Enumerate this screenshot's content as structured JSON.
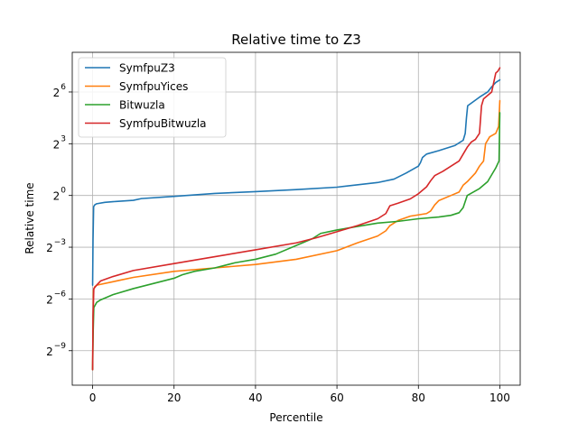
{
  "chart_data": {
    "type": "line",
    "title": "Relative time to Z3",
    "xlabel": "Percentile",
    "ylabel": "Relative time",
    "xlim": [
      -5,
      105
    ],
    "ylim_log2": [
      -11,
      8.3
    ],
    "y_scale": "log2",
    "grid": true,
    "legend_position": "upper-left",
    "x_ticks": [
      {
        "value": 0,
        "label": "0"
      },
      {
        "value": 20,
        "label": "20"
      },
      {
        "value": 40,
        "label": "40"
      },
      {
        "value": 60,
        "label": "60"
      },
      {
        "value": 80,
        "label": "80"
      },
      {
        "value": 100,
        "label": "100"
      }
    ],
    "y_ticks": [
      {
        "value": -9,
        "base": "2",
        "exp": "−9"
      },
      {
        "value": -6,
        "base": "2",
        "exp": "−6"
      },
      {
        "value": -3,
        "base": "2",
        "exp": "−3"
      },
      {
        "value": 0,
        "base": "2",
        "exp": "0"
      },
      {
        "value": 3,
        "base": "2",
        "exp": "3"
      },
      {
        "value": 6,
        "base": "2",
        "exp": "6"
      }
    ],
    "series": [
      {
        "name": "SymfpuZ3",
        "color": "#1f77b4",
        "points": [
          [
            0,
            -5.2
          ],
          [
            0.1,
            -2.6
          ],
          [
            0.25,
            -0.65
          ],
          [
            0.5,
            -0.55
          ],
          [
            1,
            -0.48
          ],
          [
            3,
            -0.4
          ],
          [
            5,
            -0.36
          ],
          [
            10,
            -0.28
          ],
          [
            12,
            -0.18
          ],
          [
            20,
            -0.05
          ],
          [
            30,
            0.12
          ],
          [
            40,
            0.22
          ],
          [
            50,
            0.34
          ],
          [
            60,
            0.48
          ],
          [
            70,
            0.75
          ],
          [
            74,
            0.95
          ],
          [
            77,
            1.3
          ],
          [
            80,
            1.7
          ],
          [
            80.5,
            1.9
          ],
          [
            81,
            2.2
          ],
          [
            82,
            2.4
          ],
          [
            85,
            2.6
          ],
          [
            89,
            2.9
          ],
          [
            91,
            3.2
          ],
          [
            91.5,
            3.6
          ],
          [
            91.8,
            4.5
          ],
          [
            92.1,
            5.2
          ],
          [
            95,
            5.7
          ],
          [
            97,
            6.0
          ],
          [
            98,
            6.3
          ],
          [
            99,
            6.55
          ],
          [
            100,
            6.7
          ]
        ]
      },
      {
        "name": "SymfpuYices",
        "color": "#ff7f0e",
        "points": [
          [
            0,
            -10.1
          ],
          [
            0.1,
            -7.5
          ],
          [
            0.2,
            -5.5
          ],
          [
            0.5,
            -5.3
          ],
          [
            1,
            -5.2
          ],
          [
            5,
            -5.0
          ],
          [
            10,
            -4.75
          ],
          [
            20,
            -4.4
          ],
          [
            30,
            -4.2
          ],
          [
            40,
            -4.0
          ],
          [
            50,
            -3.7
          ],
          [
            60,
            -3.2
          ],
          [
            65,
            -2.75
          ],
          [
            70,
            -2.35
          ],
          [
            72,
            -2.05
          ],
          [
            73,
            -1.75
          ],
          [
            75,
            -1.45
          ],
          [
            78,
            -1.2
          ],
          [
            82,
            -1.05
          ],
          [
            83,
            -0.9
          ],
          [
            84,
            -0.55
          ],
          [
            85,
            -0.3
          ],
          [
            88,
            0.0
          ],
          [
            90,
            0.2
          ],
          [
            91,
            0.6
          ],
          [
            92,
            0.8
          ],
          [
            94,
            1.3
          ],
          [
            95,
            1.7
          ],
          [
            96,
            2.0
          ],
          [
            96.5,
            3.0
          ],
          [
            97.5,
            3.4
          ],
          [
            99,
            3.6
          ],
          [
            99.7,
            4.0
          ],
          [
            100,
            5.5
          ]
        ]
      },
      {
        "name": "Bitwuzla",
        "color": "#2ca02c",
        "points": [
          [
            0,
            -10.1
          ],
          [
            0.15,
            -7.8
          ],
          [
            0.3,
            -6.5
          ],
          [
            1,
            -6.2
          ],
          [
            2,
            -6.05
          ],
          [
            5,
            -5.75
          ],
          [
            10,
            -5.4
          ],
          [
            15,
            -5.1
          ],
          [
            20,
            -4.8
          ],
          [
            22,
            -4.6
          ],
          [
            25,
            -4.4
          ],
          [
            30,
            -4.2
          ],
          [
            35,
            -3.9
          ],
          [
            40,
            -3.7
          ],
          [
            45,
            -3.4
          ],
          [
            50,
            -2.9
          ],
          [
            54,
            -2.5
          ],
          [
            56,
            -2.2
          ],
          [
            60,
            -2.0
          ],
          [
            65,
            -1.8
          ],
          [
            70,
            -1.6
          ],
          [
            75,
            -1.5
          ],
          [
            80,
            -1.35
          ],
          [
            85,
            -1.25
          ],
          [
            88,
            -1.15
          ],
          [
            90,
            -1.0
          ],
          [
            91,
            -0.7
          ],
          [
            92,
            0.0
          ],
          [
            95,
            0.4
          ],
          [
            97,
            0.8
          ],
          [
            98,
            1.2
          ],
          [
            99,
            1.6
          ],
          [
            99.8,
            2.0
          ],
          [
            100,
            4.8
          ]
        ]
      },
      {
        "name": "SymfpuBitwuzla",
        "color": "#d62728",
        "points": [
          [
            0,
            -10.1
          ],
          [
            0.1,
            -7.0
          ],
          [
            0.3,
            -5.4
          ],
          [
            1,
            -5.2
          ],
          [
            2,
            -4.95
          ],
          [
            5,
            -4.7
          ],
          [
            10,
            -4.35
          ],
          [
            20,
            -3.95
          ],
          [
            30,
            -3.55
          ],
          [
            40,
            -3.15
          ],
          [
            50,
            -2.75
          ],
          [
            55,
            -2.45
          ],
          [
            60,
            -2.1
          ],
          [
            65,
            -1.75
          ],
          [
            70,
            -1.35
          ],
          [
            72,
            -1.05
          ],
          [
            73,
            -0.6
          ],
          [
            75,
            -0.45
          ],
          [
            78,
            -0.2
          ],
          [
            80,
            0.1
          ],
          [
            82,
            0.5
          ],
          [
            83,
            0.85
          ],
          [
            84,
            1.15
          ],
          [
            86,
            1.4
          ],
          [
            88,
            1.7
          ],
          [
            90,
            2.0
          ],
          [
            91,
            2.4
          ],
          [
            92,
            2.8
          ],
          [
            93,
            3.1
          ],
          [
            94,
            3.25
          ],
          [
            95,
            3.6
          ],
          [
            95.5,
            5.2
          ],
          [
            96,
            5.6
          ],
          [
            98,
            6.0
          ],
          [
            99,
            7.1
          ],
          [
            99.5,
            7.2
          ],
          [
            100,
            7.4
          ]
        ]
      }
    ]
  }
}
